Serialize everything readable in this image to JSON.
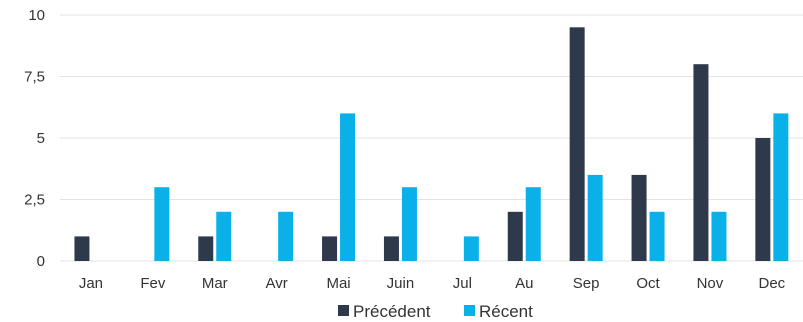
{
  "chart_data": {
    "type": "bar",
    "categories": [
      "Jan",
      "Fev",
      "Mar",
      "Avr",
      "Mai",
      "Juin",
      "Jul",
      "Au",
      "Sep",
      "Oct",
      "Nov",
      "Dec"
    ],
    "series": [
      {
        "name": "Précédent",
        "color": "#2e3a4b",
        "values": [
          1,
          0,
          1,
          0,
          1,
          1,
          0,
          2,
          9.5,
          3.5,
          8,
          5
        ]
      },
      {
        "name": "Récent",
        "color": "#0ab0e8",
        "values": [
          0,
          3,
          2,
          2,
          6,
          3,
          1,
          3,
          3.5,
          2,
          2,
          6
        ]
      }
    ],
    "title": "",
    "xlabel": "",
    "ylabel": "",
    "ylim": [
      0,
      10
    ],
    "yticks": [
      0,
      2.5,
      5,
      7.5,
      10
    ],
    "ytick_labels": [
      "0",
      "2,5",
      "5",
      "7,5",
      "10"
    ],
    "grid": "horizontal",
    "legend_position": "bottom-center"
  }
}
